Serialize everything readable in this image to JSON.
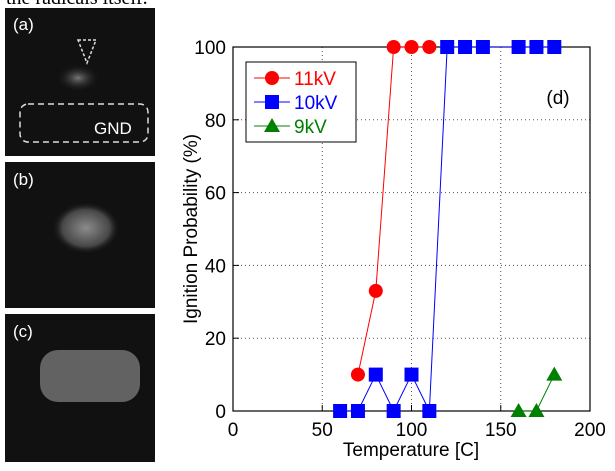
{
  "caption_fragment": "the radicals itself.",
  "panels": [
    "(a)",
    "(b)",
    "(c)"
  ],
  "gnd_label": "GND",
  "chart_data": {
    "type": "line",
    "annotation": "(d)",
    "x_label": "Temperature [C]",
    "y_label": "Ignition Probability (%)",
    "xlim": [
      0,
      200
    ],
    "xticks": [
      0,
      50,
      100,
      150,
      200
    ],
    "ylim": [
      0,
      100
    ],
    "yticks": [
      0,
      20,
      40,
      60,
      80,
      100
    ],
    "grid": true,
    "legend": "upper left",
    "series": [
      {
        "name": "11kV",
        "color": "#ff0000",
        "marker": "circle",
        "x": [
          70,
          80,
          90,
          100,
          110
        ],
        "values": [
          10,
          33,
          100,
          100,
          100
        ]
      },
      {
        "name": "10kV",
        "color": "#0000ff",
        "marker": "square",
        "x": [
          60,
          70,
          80,
          90,
          100,
          110,
          120,
          130,
          140,
          160,
          170,
          180
        ],
        "values": [
          0,
          0,
          10,
          0,
          10,
          0,
          100,
          100,
          100,
          100,
          100,
          100
        ]
      },
      {
        "name": "9kV",
        "color": "#008000",
        "marker": "triangle",
        "x": [
          160,
          170,
          180
        ],
        "values": [
          0,
          0,
          10
        ]
      }
    ]
  }
}
